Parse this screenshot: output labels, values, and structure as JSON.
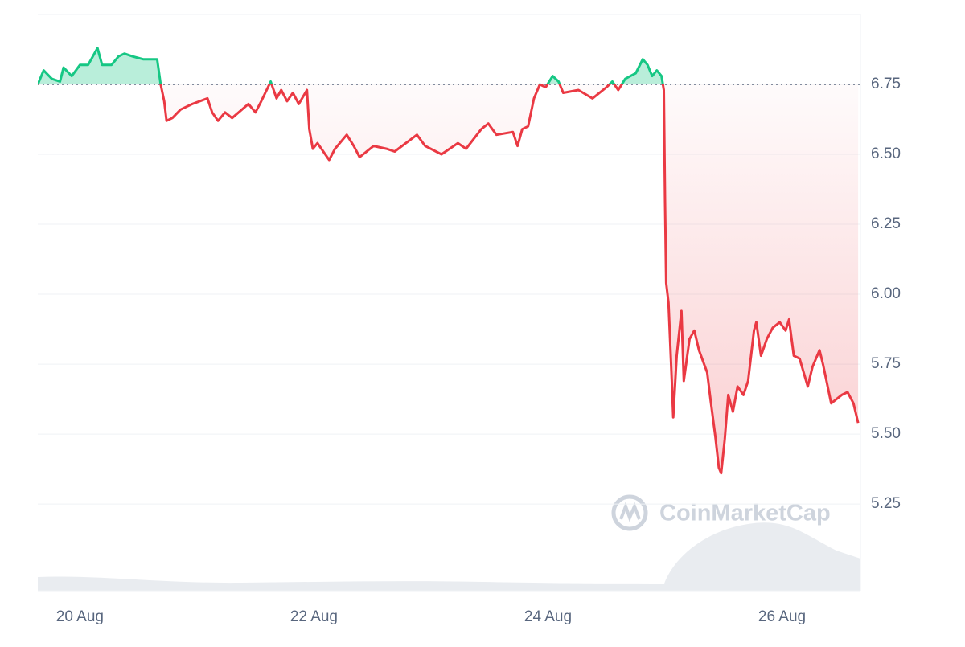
{
  "chart_data": {
    "type": "line",
    "watermark": "CoinMarketCap",
    "x": [
      19.64,
      19.69,
      19.76,
      19.83,
      19.86,
      19.93,
      20.0,
      20.07,
      20.15,
      20.19,
      20.27,
      20.33,
      20.38,
      20.45,
      20.54,
      20.66,
      20.69,
      20.72,
      20.74,
      20.79,
      20.86,
      20.96,
      21.09,
      21.13,
      21.18,
      21.24,
      21.3,
      21.44,
      21.5,
      21.55,
      21.63,
      21.68,
      21.72,
      21.77,
      21.82,
      21.87,
      21.94,
      21.96,
      21.99,
      22.03,
      22.13,
      22.18,
      22.28,
      22.34,
      22.39,
      22.51,
      22.62,
      22.69,
      22.88,
      22.95,
      23.09,
      23.23,
      23.3,
      23.43,
      23.49,
      23.56,
      23.7,
      23.74,
      23.78,
      23.83,
      23.88,
      23.93,
      23.98,
      24.04,
      24.09,
      24.13,
      24.26,
      24.38,
      24.5,
      24.55,
      24.6,
      24.66,
      24.75,
      24.81,
      24.85,
      24.89,
      24.93,
      24.97,
      24.99,
      25.0,
      25.01,
      25.03,
      25.06,
      25.07,
      25.1,
      25.14,
      25.16,
      25.21,
      25.25,
      25.29,
      25.36,
      25.39,
      25.43,
      25.46,
      25.48,
      25.51,
      25.54,
      25.58,
      25.62,
      25.67,
      25.71,
      25.76,
      25.78,
      25.82,
      25.87,
      25.92,
      25.98,
      26.03,
      26.06,
      26.1,
      26.15,
      26.22,
      26.26,
      26.32,
      26.35,
      26.42,
      26.51,
      26.56,
      26.61,
      26.65
    ],
    "values": [
      6.75,
      6.8,
      6.77,
      6.76,
      6.81,
      6.78,
      6.82,
      6.82,
      6.88,
      6.82,
      6.82,
      6.85,
      6.86,
      6.85,
      6.84,
      6.84,
      6.75,
      6.69,
      6.62,
      6.63,
      6.66,
      6.68,
      6.7,
      6.65,
      6.62,
      6.65,
      6.63,
      6.68,
      6.65,
      6.69,
      6.76,
      6.7,
      6.73,
      6.69,
      6.72,
      6.68,
      6.73,
      6.59,
      6.52,
      6.54,
      6.48,
      6.52,
      6.57,
      6.53,
      6.49,
      6.53,
      6.52,
      6.51,
      6.57,
      6.53,
      6.5,
      6.54,
      6.52,
      6.59,
      6.61,
      6.57,
      6.58,
      6.53,
      6.59,
      6.6,
      6.7,
      6.75,
      6.74,
      6.78,
      6.76,
      6.72,
      6.73,
      6.7,
      6.74,
      6.76,
      6.73,
      6.77,
      6.79,
      6.84,
      6.82,
      6.78,
      6.8,
      6.78,
      6.73,
      6.33,
      6.04,
      5.97,
      5.67,
      5.56,
      5.78,
      5.94,
      5.69,
      5.84,
      5.87,
      5.8,
      5.72,
      5.62,
      5.49,
      5.38,
      5.36,
      5.48,
      5.64,
      5.58,
      5.67,
      5.64,
      5.69,
      5.87,
      5.9,
      5.78,
      5.84,
      5.88,
      5.9,
      5.87,
      5.91,
      5.78,
      5.77,
      5.67,
      5.74,
      5.8,
      5.75,
      5.61,
      5.64,
      5.65,
      5.61,
      5.54
    ],
    "baseline": 6.75,
    "up_color": "#16c784",
    "down_color": "#ea3943",
    "xlim": [
      19.64,
      26.67
    ],
    "xticks": [
      {
        "value": 20,
        "label": "20 Aug"
      },
      {
        "value": 22,
        "label": "22 Aug"
      },
      {
        "value": 24,
        "label": "24 Aug"
      },
      {
        "value": 26,
        "label": "26 Aug"
      }
    ],
    "ylim": [
      4.94,
      7.0
    ],
    "yticks": [
      5.25,
      {
        "value": 5.5,
        "label": "5.50"
      },
      5.75,
      {
        "value": 6,
        "label": "6.00"
      },
      6.25,
      {
        "value": 6.5,
        "label": "6.50"
      },
      6.75
    ],
    "grid": true
  }
}
